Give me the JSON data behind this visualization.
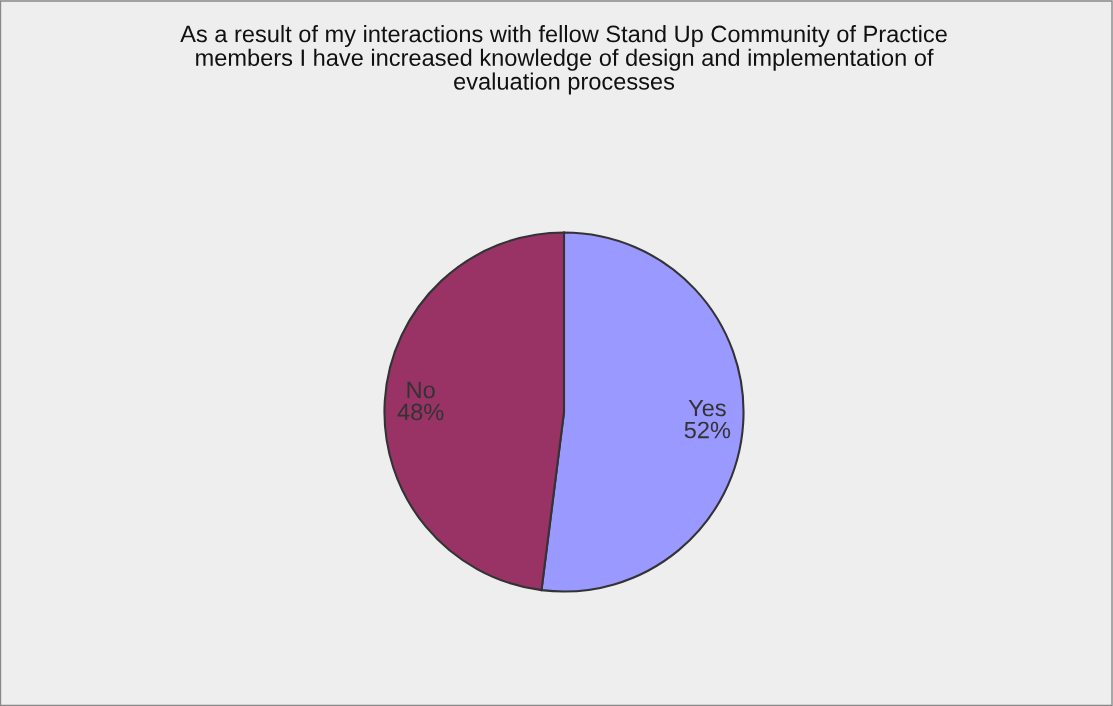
{
  "chart_data": {
    "type": "pie",
    "title": "As a result of my interactions with fellow Stand Up Community of Practice\nmembers I have increased knowledge of design and implementation of\nevaluation processes",
    "categories": [
      "Yes",
      "No"
    ],
    "values": [
      52,
      48
    ],
    "colors": [
      "#9999ff",
      "#993366"
    ],
    "value_labels": [
      "52%",
      "48%"
    ]
  }
}
